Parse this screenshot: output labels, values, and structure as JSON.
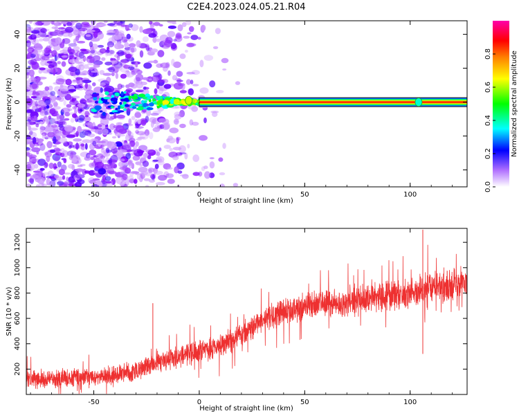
{
  "title": "C2E4.2023.024.05.21.R04",
  "chart_data": [
    {
      "type": "heatmap",
      "description_role": "spectrogram",
      "xlabel": "Height of straight line (km)",
      "ylabel": "Frequency (Hz)",
      "xlim": [
        -82,
        127
      ],
      "ylim": [
        -50,
        48
      ],
      "xticks": [
        -50,
        0,
        50,
        100
      ],
      "xtick_labels": [
        "-50",
        "0",
        "50",
        "100"
      ],
      "yticks": [
        -40,
        -20,
        0,
        20,
        40
      ],
      "ytick_labels": [
        "-40",
        "-20",
        "0",
        "20",
        "40"
      ],
      "colorbar": {
        "label": "Normalized spectral amplitude",
        "range": [
          0,
          1
        ],
        "ticks": [
          0,
          0.2,
          0.4,
          0.6,
          0.8
        ],
        "tick_labels": [
          "0.0",
          "0.2",
          "0.4",
          "0.6",
          "0.8"
        ],
        "colormap": [
          "#ffffff",
          "#7f00ff",
          "#0000ff",
          "#00ffff",
          "#00ff00",
          "#ffff00",
          "#ff7f00",
          "#ff0000",
          "#ff00ff"
        ]
      },
      "signal_line": {
        "frequency_hz": 0,
        "x_start_km": 0,
        "x_end_km": 127,
        "amplitude": 0.85
      },
      "notable_features": [
        {
          "x_km": -5,
          "frequency_hz": 1,
          "amplitude": 0.6
        },
        {
          "x_km": 104,
          "frequency_hz": 0,
          "amplitude": 0.4
        }
      ]
    },
    {
      "type": "line",
      "xlabel": "Height of straight line (km)",
      "ylabel": "SNR (10 * v/v)",
      "xlim": [
        -82,
        127
      ],
      "ylim": [
        0,
        1310
      ],
      "xticks": [
        -50,
        0,
        50,
        100
      ],
      "xtick_labels": [
        "-50",
        "0",
        "50",
        "100"
      ],
      "yticks": [
        200,
        400,
        600,
        800,
        1000,
        1200
      ],
      "ytick_labels": [
        "200",
        "400",
        "600",
        "800",
        "1000",
        "1200"
      ],
      "color": "#ee3030",
      "trend": {
        "x": [
          -82,
          -60,
          -40,
          -30,
          -20,
          -10,
          0,
          10,
          20,
          30,
          40,
          50,
          60,
          70,
          80,
          90,
          100,
          110,
          120,
          127
        ],
        "y": [
          120,
          130,
          150,
          190,
          250,
          300,
          340,
          380,
          470,
          600,
          650,
          700,
          720,
          730,
          760,
          780,
          800,
          830,
          870,
          880
        ]
      },
      "spread": 120,
      "spikes": [
        {
          "x": -22,
          "y": 720
        },
        {
          "x": 106,
          "y": 1300
        },
        {
          "x": 106,
          "y": 320
        }
      ]
    }
  ]
}
